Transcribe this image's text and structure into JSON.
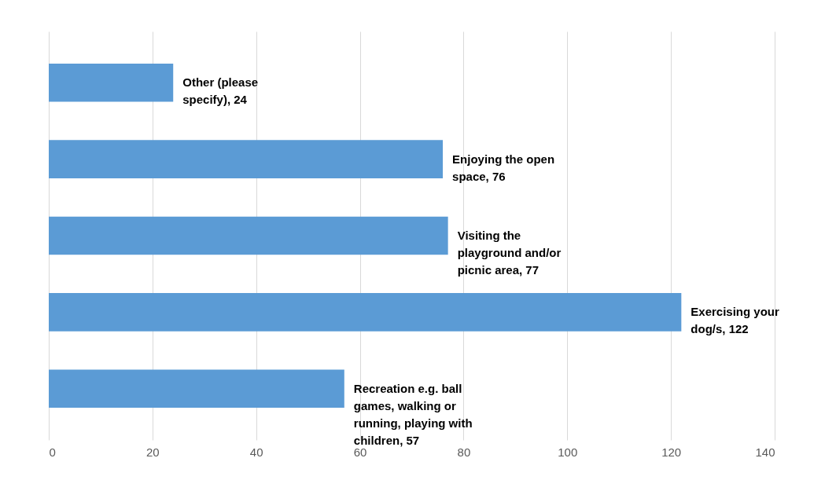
{
  "chart_data": {
    "type": "bar",
    "orientation": "horizontal",
    "categories": [
      null,
      null,
      null,
      null,
      null
    ],
    "values": [
      24,
      76,
      77,
      122,
      57
    ],
    "value_labels": [
      "Other (please specify), 24",
      "Enjoying the open space, 76",
      "Visiting the playground and/or picnic area, 77",
      "Exercising your dog/s, 122",
      "Recreation e.g. ball games, walking or running, playing with children, 57"
    ],
    "color": "#5b9bd5",
    "xlim": [
      0,
      140
    ],
    "xticks": [
      0,
      20,
      40,
      60,
      80,
      100,
      120,
      140
    ],
    "grid": "x"
  }
}
